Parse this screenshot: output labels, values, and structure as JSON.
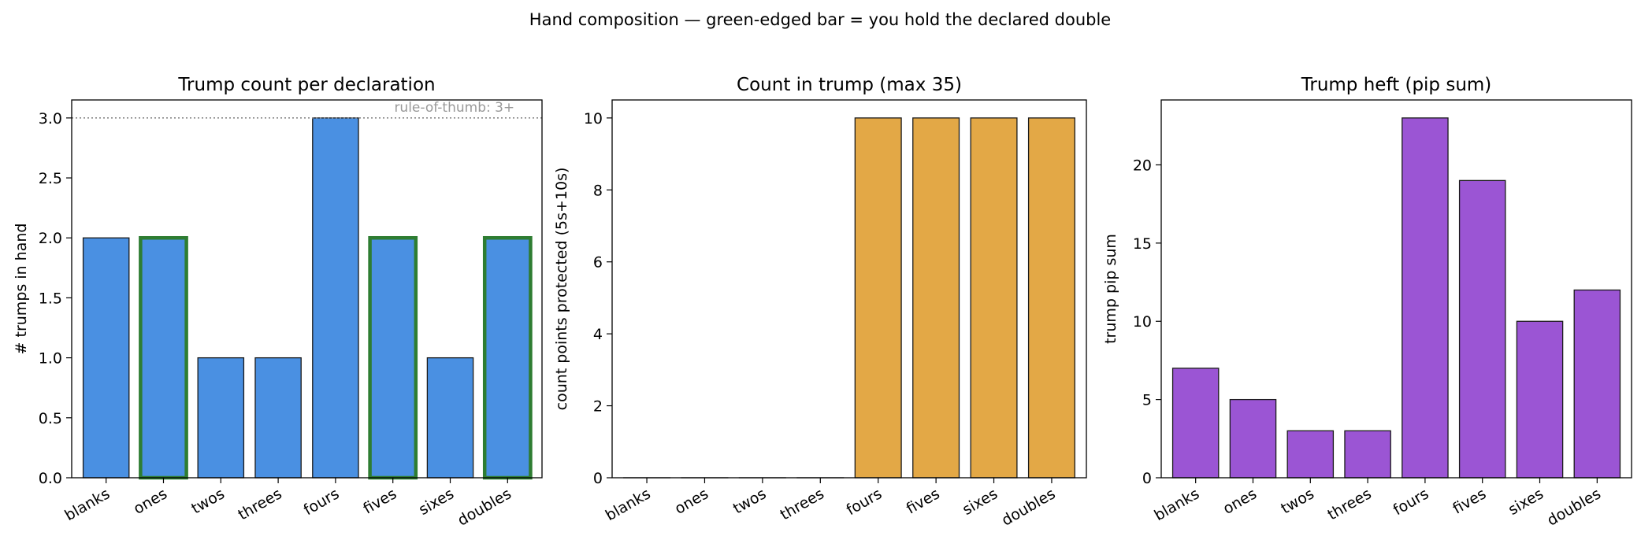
{
  "suptitle": "Hand composition — green-edged bar = you hold the declared double",
  "colors": {
    "edge": "#1a1a1a",
    "highlight_edge": "#2e7d32",
    "refline": "#888888",
    "annotation": "#999999"
  },
  "chart_data": [
    {
      "type": "bar",
      "title": "Trump count per declaration",
      "xlabel": "",
      "ylabel": "# trumps in hand",
      "categories": [
        "blanks",
        "ones",
        "twos",
        "threes",
        "fours",
        "fives",
        "sixes",
        "doubles"
      ],
      "values": [
        2,
        2,
        1,
        1,
        3,
        2,
        1,
        2
      ],
      "highlighted": [
        "ones",
        "fives",
        "doubles"
      ],
      "ylim": [
        0,
        3.15
      ],
      "yticks": [
        0.0,
        0.5,
        1.0,
        1.5,
        2.0,
        2.5,
        3.0
      ],
      "ytick_labels": [
        "0.0",
        "0.5",
        "1.0",
        "1.5",
        "2.0",
        "2.5",
        "3.0"
      ],
      "color": "#4a90e2",
      "reference_line": {
        "y": 3,
        "style": "dotted",
        "label": "rule-of-thumb: 3+"
      },
      "grid": false
    },
    {
      "type": "bar",
      "title": "Count in trump (max 35)",
      "xlabel": "",
      "ylabel": "count points protected (5s+10s)",
      "categories": [
        "blanks",
        "ones",
        "twos",
        "threes",
        "fours",
        "fives",
        "sixes",
        "doubles"
      ],
      "values": [
        0,
        0,
        0,
        0,
        10,
        10,
        10,
        10
      ],
      "ylim": [
        0,
        10.5
      ],
      "yticks": [
        0,
        2,
        4,
        6,
        8,
        10
      ],
      "ytick_labels": [
        "0",
        "2",
        "4",
        "6",
        "8",
        "10"
      ],
      "color": "#e3a846",
      "grid": false
    },
    {
      "type": "bar",
      "title": "Trump heft (pip sum)",
      "xlabel": "",
      "ylabel": "trump pip sum",
      "categories": [
        "blanks",
        "ones",
        "twos",
        "threes",
        "fours",
        "fives",
        "sixes",
        "doubles"
      ],
      "values": [
        7,
        5,
        3,
        3,
        23,
        19,
        10,
        12
      ],
      "ylim": [
        0,
        24.15
      ],
      "yticks": [
        0,
        5,
        10,
        15,
        20
      ],
      "ytick_labels": [
        "0",
        "5",
        "10",
        "15",
        "20"
      ],
      "color": "#9b55d4",
      "grid": false
    }
  ]
}
